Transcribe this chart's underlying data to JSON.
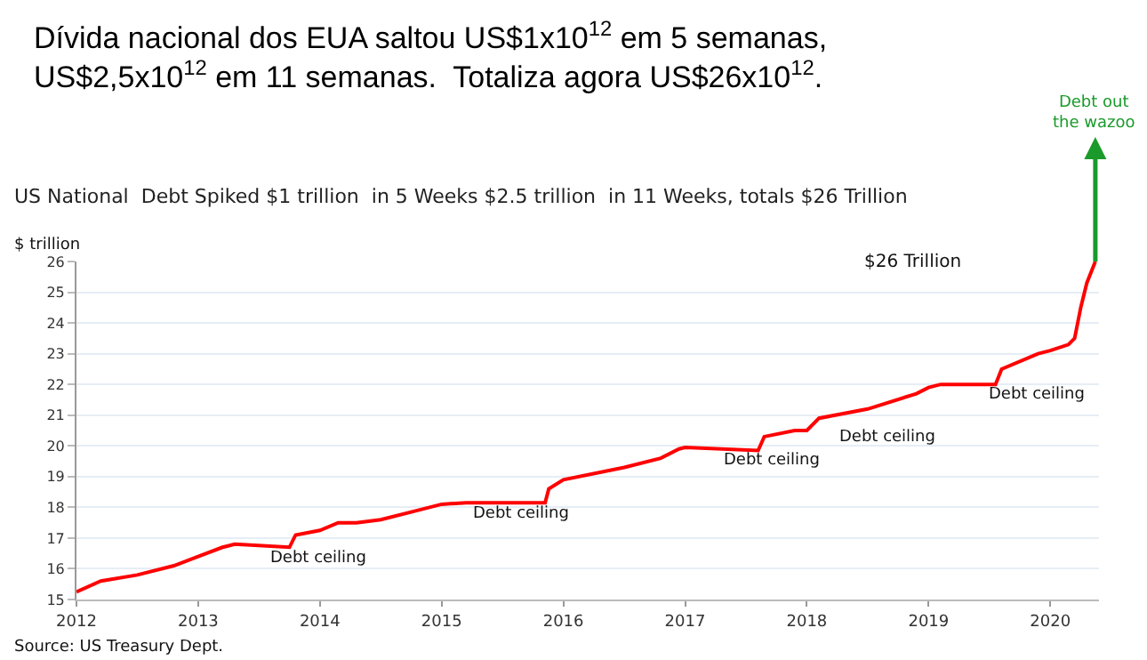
{
  "chart_data": {
    "type": "line",
    "title": "Dívida nacional dos EUA saltou US$1x10$^{12}$ em 5 semanas, US$2,5x10$^{12}$ em 11 semanas.  Totaliza agora US$26x10$^{12}$.",
    "subtitle": "US National  Debt Spiked $1 trillion  in 5 Weeks $2.5 trillion  in 11 Weeks, totals $26 Trillion",
    "ylabel": "$ trillion",
    "series": [
      {
        "color": "#ff0000",
        "x": [
          2012.0,
          2012.2,
          2012.5,
          2012.8,
          2013.0,
          2013.2,
          2013.3,
          2013.75,
          2013.8,
          2014.0,
          2014.15,
          2014.3,
          2014.5,
          2014.8,
          2015.0,
          2015.2,
          2015.85,
          2015.88,
          2016.0,
          2016.5,
          2016.8,
          2016.95,
          2017.0,
          2017.6,
          2017.65,
          2017.9,
          2018.0,
          2018.1,
          2018.5,
          2018.9,
          2019.0,
          2019.1,
          2019.55,
          2019.6,
          2019.9,
          2020.0,
          2020.15,
          2020.2,
          2020.25,
          2020.3,
          2020.37
        ],
        "values": [
          15.25,
          15.6,
          15.8,
          16.1,
          16.4,
          16.7,
          16.8,
          16.7,
          17.1,
          17.25,
          17.5,
          17.5,
          17.6,
          17.9,
          18.1,
          18.15,
          18.15,
          18.6,
          18.9,
          19.3,
          19.6,
          19.9,
          19.95,
          19.85,
          20.3,
          20.5,
          20.5,
          20.9,
          21.2,
          21.7,
          21.9,
          22.0,
          22.0,
          22.5,
          23.0,
          23.1,
          23.3,
          23.5,
          24.5,
          25.3,
          26.0
        ]
      }
    ],
    "xlim": [
      2012,
      2020.4
    ],
    "xticks": [
      2012,
      2013,
      2014,
      2015,
      2016,
      2017,
      2018,
      2019,
      2020
    ],
    "ylim": [
      15,
      26
    ],
    "yticks": [
      15,
      16,
      17,
      18,
      19,
      20,
      21,
      22,
      23,
      24,
      25,
      26
    ],
    "grid": "y",
    "marker": "none",
    "line_style": "solid",
    "annotations": [
      {
        "text": "Debt out the wazoo",
        "x": 2020.37,
        "y": 26
      },
      "$26 Trillion",
      {
        "text": "Debt ceiling",
        "x": 2013.75,
        "y": 16.7
      },
      {
        "text": "Debt ceiling",
        "x": 2015.85,
        "y": 18.15
      },
      {
        "text": "Debt ceiling",
        "x": 2017.6,
        "y": 19.85
      },
      {
        "text": "Debt ceiling",
        "x": 2018.0,
        "y": 20.5
      },
      {
        "text": "Debt ceiling",
        "x": 2019.55,
        "y": 22.0
      },
      "Source: US Treasury Dept."
    ]
  }
}
